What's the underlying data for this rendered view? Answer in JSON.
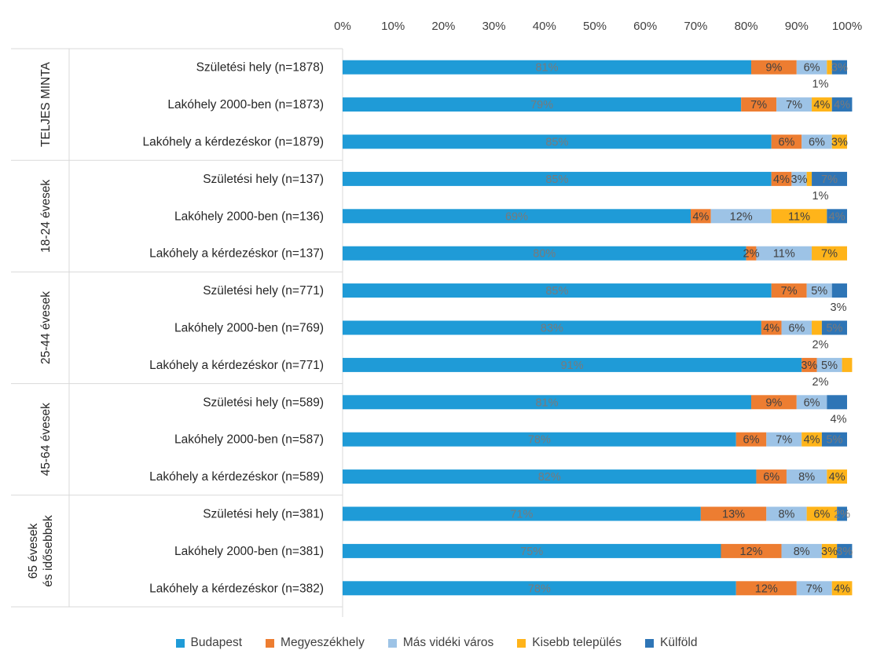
{
  "chart_data": {
    "type": "bar",
    "orientation": "horizontal",
    "stacked": "percent",
    "x_ticks": [
      "0%",
      "10%",
      "20%",
      "30%",
      "40%",
      "50%",
      "60%",
      "70%",
      "80%",
      "90%",
      "100%"
    ],
    "xlim": [
      0,
      100
    ],
    "x_axis_position": "top",
    "legend_position": "bottom",
    "series": [
      {
        "name": "Budapest",
        "color": "#1F9BD7"
      },
      {
        "name": "Megyeszékhely",
        "color": "#ED7D31"
      },
      {
        "name": "Más vidéki város",
        "color": "#9DC3E6"
      },
      {
        "name": "Kisebb település",
        "color": "#FFB41A"
      },
      {
        "name": "Külföld",
        "color": "#2E75B6"
      }
    ],
    "groups": [
      {
        "label": "TELJES MINTA",
        "rows": [
          {
            "label": "Születési hely  (n=1878)",
            "values": [
              81,
              9,
              6,
              1,
              3
            ],
            "labels": [
              "81%",
              "9%",
              "6%",
              "1%",
              "3%"
            ]
          },
          {
            "label": "Lakóhely 2000-ben (n=1873)",
            "values": [
              79,
              7,
              7,
              4,
              4
            ],
            "labels": [
              "79%",
              "7%",
              "7%",
              "4%",
              "4%"
            ]
          },
          {
            "label": "Lakóhely a kérdezéskor (n=1879)",
            "values": [
              85,
              6,
              6,
              3,
              0
            ],
            "labels": [
              "85%",
              "6%",
              "6%",
              "3%",
              ""
            ]
          }
        ]
      },
      {
        "label": "18-24 évesek",
        "rows": [
          {
            "label": "Születési hely (n=137)",
            "values": [
              85,
              4,
              3,
              1,
              7
            ],
            "labels": [
              "85%",
              "4%",
              "3%",
              "1%",
              "7%"
            ]
          },
          {
            "label": "Lakóhely 2000-ben (n=136)",
            "values": [
              69,
              4,
              12,
              11,
              4
            ],
            "labels": [
              "69%",
              "4%",
              "12%",
              "11%",
              "4%"
            ]
          },
          {
            "label": "Lakóhely a kérdezéskor (n=137)",
            "values": [
              80,
              2,
              11,
              7,
              0
            ],
            "labels": [
              "80%",
              "2%",
              "11%",
              "7%",
              ""
            ]
          }
        ]
      },
      {
        "label": "25-44 évesek",
        "rows": [
          {
            "label": "Születési hely (n=771)",
            "values": [
              85,
              7,
              5,
              0,
              3
            ],
            "labels": [
              "85%",
              "7%",
              "5%",
              "",
              "3%"
            ]
          },
          {
            "label": "Lakóhely 2000-ben (n=769)",
            "values": [
              83,
              4,
              6,
              2,
              5
            ],
            "labels": [
              "83%",
              "4%",
              "6%",
              "2%",
              "5%"
            ]
          },
          {
            "label": "Lakóhely a kérdezéskor (n=771)",
            "values": [
              91,
              3,
              5,
              2,
              0
            ],
            "labels": [
              "91%",
              "3%",
              "5%",
              "2%",
              ""
            ]
          }
        ]
      },
      {
        "label": "45-64 évesek",
        "rows": [
          {
            "label": "Születési hely (n=589)",
            "values": [
              81,
              9,
              6,
              0,
              4
            ],
            "labels": [
              "81%",
              "9%",
              "6%",
              "",
              "4%"
            ]
          },
          {
            "label": "Lakóhely 2000-ben (n=587)",
            "values": [
              78,
              6,
              7,
              4,
              5
            ],
            "labels": [
              "78%",
              "6%",
              "7%",
              "4%",
              "5%"
            ]
          },
          {
            "label": "Lakóhely a kérdezéskor (n=589)",
            "values": [
              82,
              6,
              8,
              4,
              0
            ],
            "labels": [
              "82%",
              "6%",
              "8%",
              "4%",
              ""
            ]
          }
        ]
      },
      {
        "label": "65 évesek és idősebbek",
        "rows": [
          {
            "label": "Születési hely (n=381)",
            "values": [
              71,
              13,
              8,
              6,
              2
            ],
            "labels": [
              "71%",
              "13%",
              "8%",
              "6%",
              "2%"
            ]
          },
          {
            "label": "Lakóhely 2000-ben (n=381)",
            "values": [
              75,
              12,
              8,
              3,
              3
            ],
            "labels": [
              "75%",
              "12%",
              "8%",
              "3%",
              "3%"
            ]
          },
          {
            "label": "Lakóhely a kérdezéskor (n=382)",
            "values": [
              78,
              12,
              7,
              4,
              0
            ],
            "labels": [
              "78%",
              "12%",
              "7%",
              "4%",
              ""
            ]
          }
        ]
      }
    ]
  }
}
